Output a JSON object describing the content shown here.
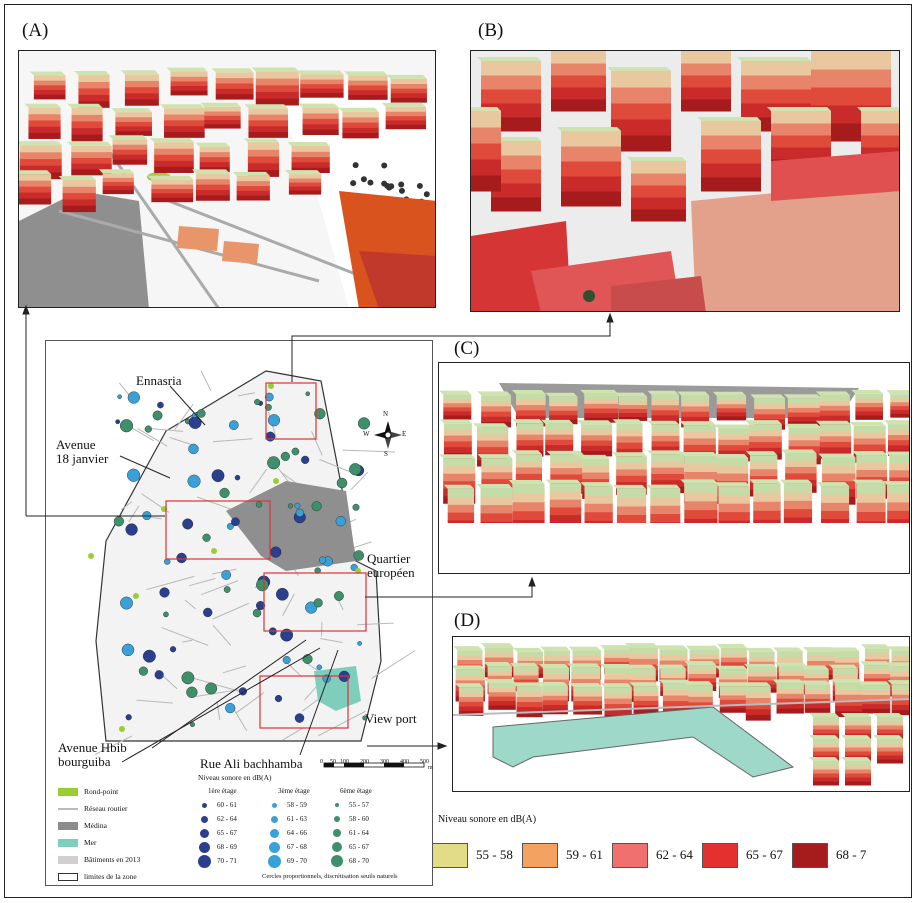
{
  "panels": {
    "a": "(A)",
    "b": "(B)",
    "c": "(C)",
    "d": "(D)"
  },
  "map_labels": {
    "ennasria": "Ennasria",
    "avenue18": [
      "Avenue",
      "18 janvier"
    ],
    "quartier": [
      "Quartier",
      "européen"
    ],
    "viewport": "View port",
    "hbib": [
      "Avenue Hbib",
      "bourguiba"
    ],
    "ali": "Rue Ali bachhamba"
  },
  "compass": {
    "n": "N",
    "s": "S",
    "e": "E",
    "w": "W"
  },
  "scale": {
    "ticks": [
      "0",
      "50",
      "100",
      "200",
      "300",
      "400",
      "500"
    ],
    "unit": "m"
  },
  "map_legend": [
    {
      "label": "Rond-point",
      "color": "#9acd32"
    },
    {
      "label": "Réseau routier",
      "color": "#bbbbbb"
    },
    {
      "label": "Médina",
      "color": "#8c8c8c"
    },
    {
      "label": "Mer",
      "color": "#7fcdbb"
    },
    {
      "label": "Bâtiments en 2013",
      "color": "#d0d0d0"
    },
    {
      "label": "limites de la zone",
      "color": "#ffffff"
    }
  ],
  "circle_legend": {
    "title": "Niveau sonore en dB(A)",
    "note": "Cercles proportionnels, discrétisation seuils naturels",
    "columns": [
      {
        "header": "1ère étage",
        "color": "#2b3f8f",
        "classes": [
          "60 - 61",
          "62 - 64",
          "65 - 67",
          "68 - 69",
          "70 - 71"
        ]
      },
      {
        "header": "3ème étage",
        "color": "#3aa0d8",
        "classes": [
          "58 - 59",
          "61 - 63",
          "64 - 66",
          "67 - 68",
          "69 - 70"
        ]
      },
      {
        "header": "6ème étage",
        "color": "#3e8f6a",
        "classes": [
          "55 - 57",
          "58 - 60",
          "61 - 64",
          "65 - 67",
          "68 - 70"
        ]
      }
    ]
  },
  "noise_legend": {
    "title": "Niveau sonore en dB(A)",
    "classes": [
      {
        "label": "55 - 58",
        "color": "#e2dc86"
      },
      {
        "label": "59 - 61",
        "color": "#f4a261"
      },
      {
        "label": "62 - 64",
        "color": "#f07070"
      },
      {
        "label": "65 - 67",
        "color": "#e53030"
      },
      {
        "label": "68 - 7",
        "color": "#a61b1b"
      }
    ]
  }
}
